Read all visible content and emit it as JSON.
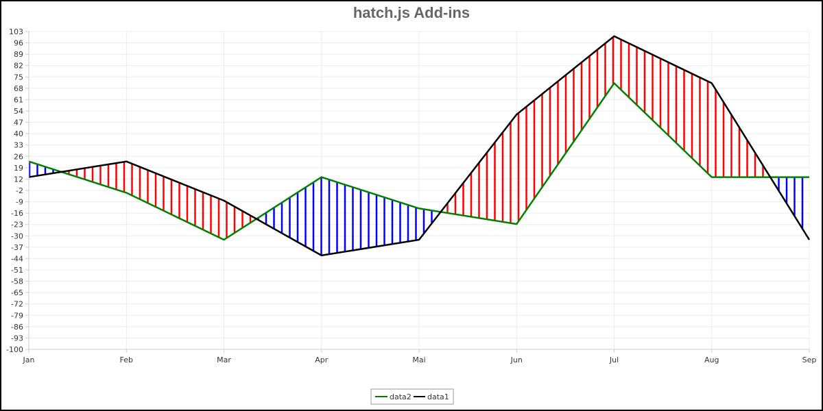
{
  "chart_data": {
    "type": "line",
    "title": "hatch.js Add-ins",
    "categories": [
      "Jan",
      "Feb",
      "Mar",
      "Apr",
      "Mai",
      "Jun",
      "Jul",
      "Aug",
      "Sep"
    ],
    "y_ticks": [
      "103",
      "96",
      "89",
      "82",
      "75",
      "68",
      "61",
      "54",
      "47",
      "40",
      "33",
      "26",
      "19",
      "12",
      "-2",
      "-9",
      "-16",
      "-23",
      "-30",
      "-37",
      "-44",
      "-51",
      "-58",
      "-65",
      "-72",
      "-79",
      "-86",
      "-93",
      "-100"
    ],
    "ylim": [
      -100,
      103
    ],
    "grid": true,
    "legend_position": "bottom",
    "series": [
      {
        "name": "data2",
        "color": "#008000",
        "values": [
          20,
          0,
          -30,
          10,
          -10,
          -20,
          70,
          10,
          10
        ]
      },
      {
        "name": "data1",
        "color": "#000000",
        "values": [
          10,
          20,
          -5,
          -40,
          -30,
          50,
          100,
          70,
          -30
        ]
      }
    ],
    "hatch_colors": {
      "data1_above": "#ff0000",
      "data2_above": "#0000ff"
    }
  }
}
